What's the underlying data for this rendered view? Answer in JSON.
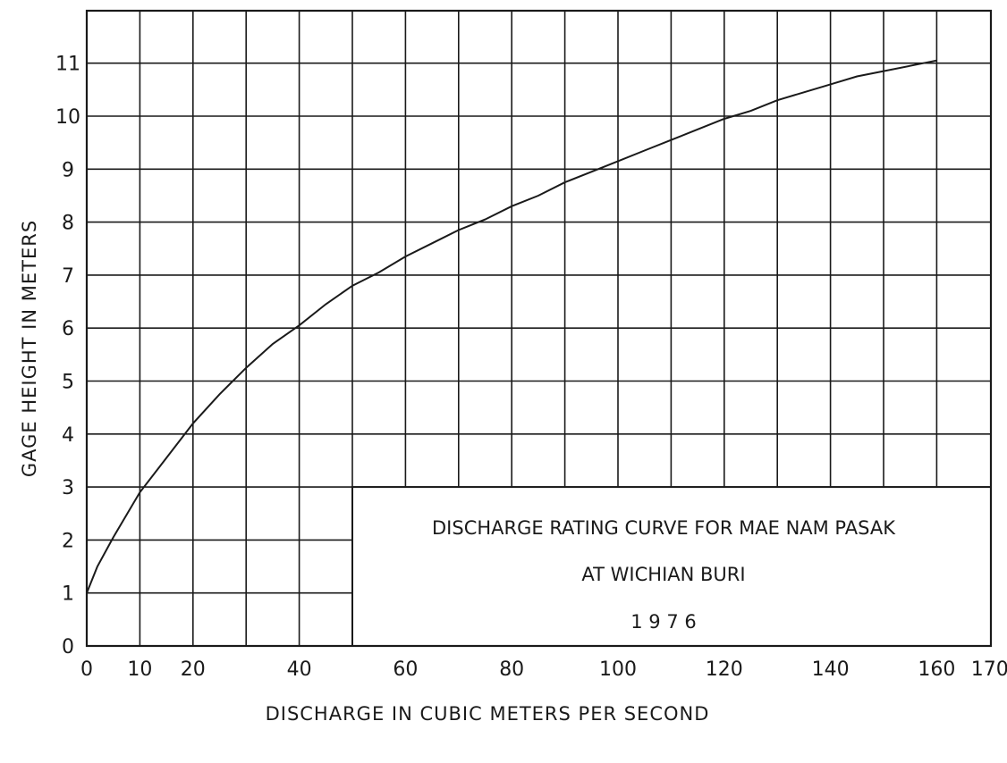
{
  "chart_data": {
    "type": "line",
    "title": [
      "DISCHARGE RATING CURVE FOR MAE NAM  PASAK",
      "AT WICHIAN BURI",
      "1 9 7 6"
    ],
    "xlabel": "DISCHARGE  IN  CUBIC METERS PER  SECOND",
    "ylabel": "GAGE  HEIGHT  IN  METERS",
    "xlim": [
      0,
      170
    ],
    "ylim": [
      0,
      12
    ],
    "x_ticks": [
      {
        "value": 0,
        "label": "0"
      },
      {
        "value": 10,
        "label": "10"
      },
      {
        "value": 20,
        "label": "20"
      },
      {
        "value": 40,
        "label": "40"
      },
      {
        "value": 60,
        "label": "60"
      },
      {
        "value": 80,
        "label": "80"
      },
      {
        "value": 100,
        "label": "100"
      },
      {
        "value": 120,
        "label": "120"
      },
      {
        "value": 140,
        "label": "140"
      },
      {
        "value": 160,
        "label": "160"
      },
      {
        "value": 170,
        "label": "170"
      }
    ],
    "y_ticks": [
      0,
      1,
      2,
      3,
      4,
      5,
      6,
      7,
      8,
      9,
      10,
      11
    ],
    "grid": true,
    "line_color": "#1a1a1a",
    "series": [
      {
        "x": [
          0,
          2,
          5,
          10,
          15,
          20,
          25,
          30,
          35,
          40,
          45,
          50,
          55,
          60,
          65,
          70,
          75,
          80,
          85,
          90,
          95,
          100,
          105,
          110,
          115,
          120,
          125,
          130,
          135,
          140,
          145,
          150,
          155,
          160
        ],
        "y": [
          1.0,
          1.5,
          2.05,
          2.9,
          3.55,
          4.2,
          4.75,
          5.25,
          5.7,
          6.05,
          6.45,
          6.8,
          7.05,
          7.35,
          7.6,
          7.85,
          8.05,
          8.3,
          8.5,
          8.75,
          8.95,
          9.15,
          9.35,
          9.55,
          9.75,
          9.95,
          10.1,
          10.3,
          10.45,
          10.6,
          10.75,
          10.85,
          10.95,
          11.05
        ]
      }
    ]
  }
}
